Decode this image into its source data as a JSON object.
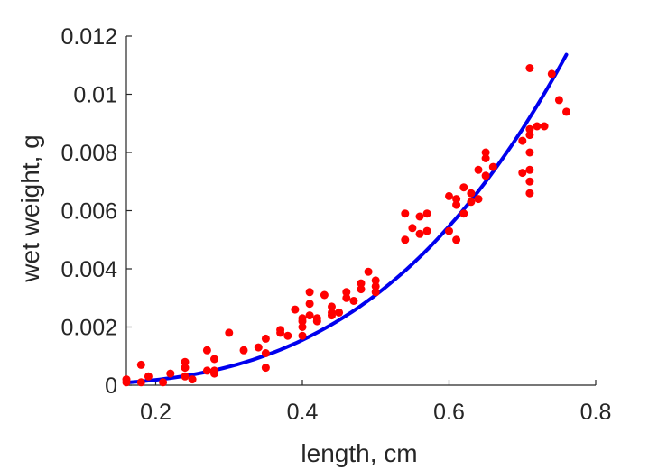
{
  "chart_data": {
    "type": "scatter",
    "title": "",
    "xlabel": "length, cm",
    "ylabel": "wet weight, g",
    "xlim": [
      0.16,
      0.8
    ],
    "ylim": [
      0,
      0.012
    ],
    "grid": false,
    "legend": "none",
    "x_ticks": [
      "0.2",
      "0.4",
      "0.6",
      "0.8"
    ],
    "x_tick_values": [
      0.2,
      0.4,
      0.6,
      0.8
    ],
    "y_ticks": [
      "0",
      "0.002",
      "0.004",
      "0.006",
      "0.008",
      "0.01",
      "0.012"
    ],
    "y_tick_values": [
      0,
      0.002,
      0.004,
      0.006,
      0.008,
      0.01,
      0.012
    ],
    "colors": {
      "points": "#ff0000",
      "fit": "#0000ee",
      "axis": "#262626"
    },
    "series": [
      {
        "kind": "scatter",
        "points": [
          [
            0.16,
            0.0001
          ],
          [
            0.16,
            0.0002
          ],
          [
            0.18,
            0.0007
          ],
          [
            0.18,
            0.0001
          ],
          [
            0.19,
            0.0003
          ],
          [
            0.21,
            0.0001
          ],
          [
            0.22,
            0.0004
          ],
          [
            0.24,
            0.0008
          ],
          [
            0.24,
            0.0003
          ],
          [
            0.24,
            0.0006
          ],
          [
            0.25,
            0.0002
          ],
          [
            0.27,
            0.0012
          ],
          [
            0.27,
            0.0005
          ],
          [
            0.28,
            0.0009
          ],
          [
            0.28,
            0.0004
          ],
          [
            0.28,
            0.0005
          ],
          [
            0.3,
            0.0018
          ],
          [
            0.32,
            0.0012
          ],
          [
            0.34,
            0.0013
          ],
          [
            0.35,
            0.0016
          ],
          [
            0.35,
            0.0011
          ],
          [
            0.35,
            0.0006
          ],
          [
            0.37,
            0.0019
          ],
          [
            0.37,
            0.0018
          ],
          [
            0.38,
            0.0017
          ],
          [
            0.39,
            0.0026
          ],
          [
            0.4,
            0.0022
          ],
          [
            0.4,
            0.002
          ],
          [
            0.4,
            0.0017
          ],
          [
            0.4,
            0.0023
          ],
          [
            0.41,
            0.0032
          ],
          [
            0.41,
            0.0028
          ],
          [
            0.41,
            0.0024
          ],
          [
            0.42,
            0.0023
          ],
          [
            0.42,
            0.0022
          ],
          [
            0.43,
            0.0031
          ],
          [
            0.44,
            0.0027
          ],
          [
            0.44,
            0.0024
          ],
          [
            0.44,
            0.0025
          ],
          [
            0.45,
            0.0025
          ],
          [
            0.46,
            0.0032
          ],
          [
            0.46,
            0.003
          ],
          [
            0.47,
            0.0029
          ],
          [
            0.48,
            0.0035
          ],
          [
            0.48,
            0.0033
          ],
          [
            0.49,
            0.0039
          ],
          [
            0.5,
            0.0034
          ],
          [
            0.5,
            0.0032
          ],
          [
            0.5,
            0.0036
          ],
          [
            0.54,
            0.0059
          ],
          [
            0.54,
            0.005
          ],
          [
            0.55,
            0.0054
          ],
          [
            0.56,
            0.0058
          ],
          [
            0.56,
            0.0052
          ],
          [
            0.57,
            0.0053
          ],
          [
            0.57,
            0.0059
          ],
          [
            0.6,
            0.0065
          ],
          [
            0.6,
            0.0053
          ],
          [
            0.61,
            0.0064
          ],
          [
            0.61,
            0.0062
          ],
          [
            0.61,
            0.005
          ],
          [
            0.62,
            0.0068
          ],
          [
            0.62,
            0.0059
          ],
          [
            0.63,
            0.0063
          ],
          [
            0.63,
            0.0066
          ],
          [
            0.64,
            0.0064
          ],
          [
            0.64,
            0.0074
          ],
          [
            0.65,
            0.0072
          ],
          [
            0.65,
            0.0078
          ],
          [
            0.65,
            0.008
          ],
          [
            0.66,
            0.0075
          ],
          [
            0.7,
            0.0084
          ],
          [
            0.7,
            0.0073
          ],
          [
            0.71,
            0.0109
          ],
          [
            0.71,
            0.0088
          ],
          [
            0.71,
            0.0086
          ],
          [
            0.71,
            0.008
          ],
          [
            0.71,
            0.0074
          ],
          [
            0.71,
            0.007
          ],
          [
            0.71,
            0.0066
          ],
          [
            0.72,
            0.0089
          ],
          [
            0.73,
            0.0089
          ],
          [
            0.74,
            0.0107
          ],
          [
            0.75,
            0.0098
          ],
          [
            0.76,
            0.0094
          ]
        ]
      },
      {
        "kind": "line",
        "model": "y = a * x^b",
        "a": 0.0266,
        "b": 3.1,
        "x_range": [
          0.16,
          0.76
        ]
      }
    ]
  }
}
